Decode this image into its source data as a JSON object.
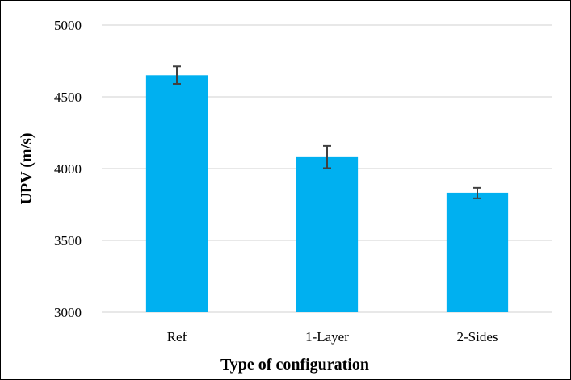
{
  "chart_data": {
    "type": "bar",
    "categories": [
      "Ref",
      "1-Layer",
      "2-Sides"
    ],
    "values": [
      4650,
      4085,
      3832
    ],
    "error": [
      [
        4590,
        4712
      ],
      [
        4003,
        4158
      ],
      [
        3793,
        3866
      ]
    ],
    "xlabel": "Type of configuration",
    "ylabel": "UPV (m/s)",
    "ylim": [
      3000,
      5000
    ],
    "yticks": [
      3000,
      3500,
      4000,
      4500,
      5000
    ],
    "grid": true,
    "legend": "none",
    "colors": {
      "bar": "#00B0F0",
      "grid": "#D9D9D9",
      "error": "#404040"
    }
  }
}
